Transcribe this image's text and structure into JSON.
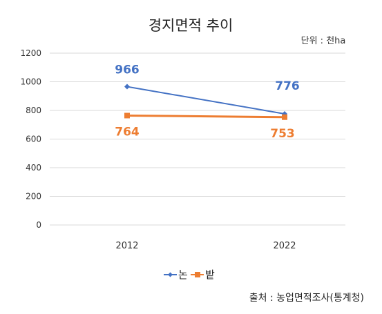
{
  "chart_data": {
    "type": "line",
    "title": "경지면적 추이",
    "unit_note": "단위 : 천ha",
    "x": [
      "2012",
      "2022"
    ],
    "ylim": [
      0,
      1200
    ],
    "yticks": [
      "0",
      "200",
      "400",
      "600",
      "800",
      "1000",
      "1200"
    ],
    "grid": true,
    "legend_position": "bottom",
    "series": [
      {
        "name": "논",
        "values": [
          966,
          776
        ],
        "color": "#4472C4",
        "labels": [
          "966",
          "776"
        ]
      },
      {
        "name": "밭",
        "values": [
          764,
          753
        ],
        "color": "#ED7D31",
        "labels": [
          "764",
          "753"
        ]
      }
    ],
    "source": "출처 : 농업면적조사(통계청)"
  }
}
